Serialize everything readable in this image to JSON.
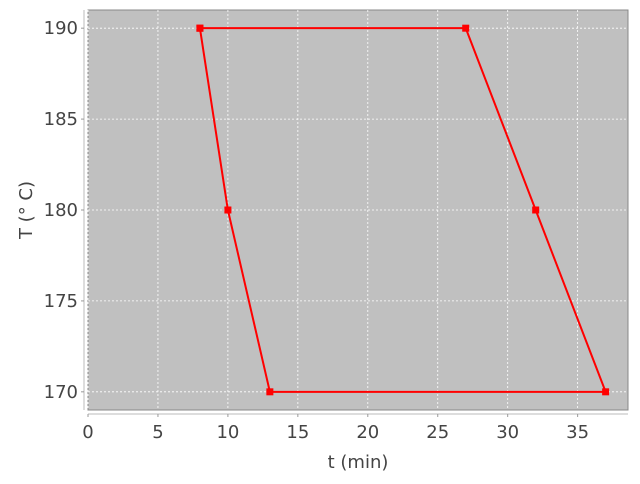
{
  "chart_data": {
    "type": "line",
    "title": "",
    "xlabel": "t (min)",
    "ylabel": "T (° C)",
    "xlim": [
      0,
      38.6
    ],
    "ylim": [
      169.0,
      191.0
    ],
    "xticks": [
      0,
      5,
      10,
      15,
      20,
      25,
      30,
      35
    ],
    "yticks": [
      170,
      175,
      180,
      185,
      190
    ],
    "grid": true,
    "legend": "none",
    "background_color": "#c0c0c0",
    "series": [
      {
        "color": "#ff0000",
        "marker": "square",
        "x": [
          8,
          27,
          32,
          37,
          13,
          10,
          8
        ],
        "y": [
          190,
          190,
          180,
          170,
          170,
          180,
          190
        ]
      }
    ]
  }
}
